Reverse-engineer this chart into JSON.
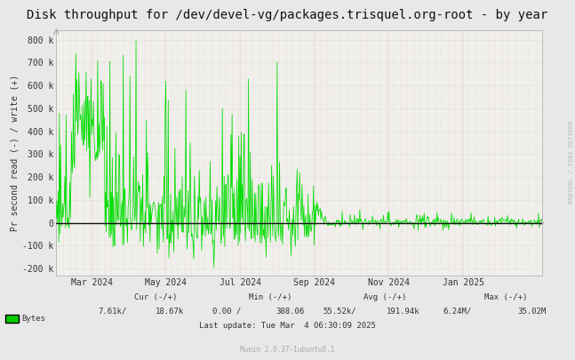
{
  "title": "Disk throughput for /dev/devel-vg/packages.trisquel.org-root - by year",
  "ylabel": "Pr second read (-) / write (+)",
  "background_color": "#e8e8e8",
  "plot_bg_color": "#f5f5f0",
  "line_color": "#00dd00",
  "zero_line_color": "#111111",
  "ylim": [
    -230000,
    840000
  ],
  "yticks": [
    -200000,
    -100000,
    0,
    100000,
    200000,
    300000,
    400000,
    500000,
    600000,
    700000,
    800000
  ],
  "ytick_labels": [
    "-200 k",
    "-100 k",
    "0",
    "100 k",
    "200 k",
    "300 k",
    "400 k",
    "500 k",
    "600 k",
    "700 k",
    "800 k"
  ],
  "xtick_positions": [
    0.073,
    0.225,
    0.378,
    0.531,
    0.684,
    0.837
  ],
  "xtick_labels": [
    "Mar 2024",
    "May 2024",
    "Jul 2024",
    "Sep 2024",
    "Nov 2024",
    "Jan 2025"
  ],
  "legend_label": "Bytes",
  "legend_color": "#00cc00",
  "cur_neg": "7.61k/",
  "cur_pos": "18.67k",
  "min_neg": "0.00 /",
  "min_pos": "388.06",
  "avg_neg": "55.52k/",
  "avg_pos": "191.94k",
  "max_neg": "6.24M/",
  "max_pos": "35.02M",
  "last_update": "Last update: Tue Mar  4 06:30:09 2025",
  "munin_version": "Munin 2.0.37-1ubuntu0.1",
  "rrdtool_text": "RRDTOOL / TOBI OETIKER",
  "title_fontsize": 10,
  "tick_fontsize": 7,
  "stats_fontsize": 6.5
}
